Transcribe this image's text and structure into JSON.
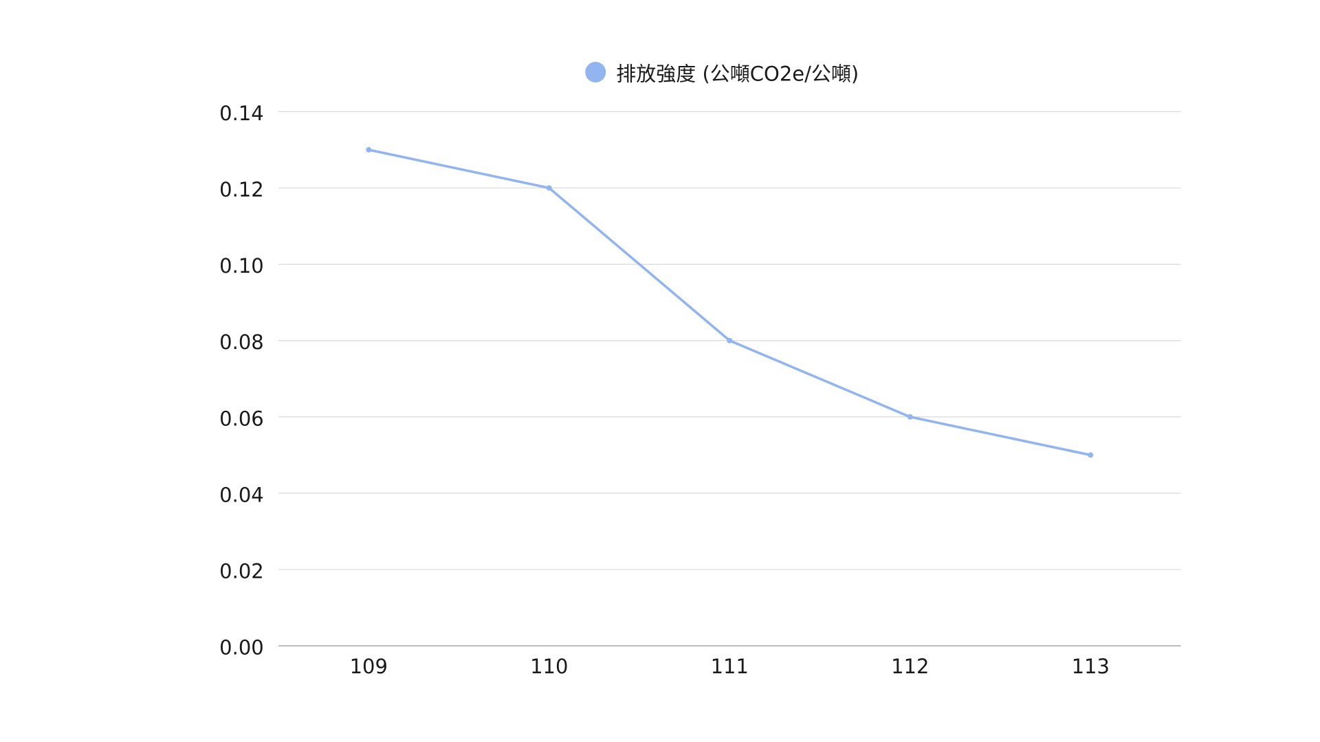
{
  "chart_data": {
    "type": "line",
    "categories": [
      "109",
      "110",
      "111",
      "112",
      "113"
    ],
    "series": [
      {
        "name": "排放強度 (公噸CO2e/公噸)",
        "values": [
          0.13,
          0.12,
          0.08,
          0.06,
          0.05
        ]
      }
    ],
    "ylim": [
      0,
      0.14
    ],
    "yticks": [
      "0.00",
      "0.02",
      "0.04",
      "0.06",
      "0.08",
      "0.10",
      "0.12",
      "0.14"
    ],
    "ytick_values": [
      0,
      0.02,
      0.04,
      0.06,
      0.08,
      0.1,
      0.12,
      0.14
    ],
    "grid": true,
    "legend_position": "top-center",
    "colors": {
      "series": "#93b5ef",
      "grid": "#d9d9d9",
      "axis": "#b3b3b3"
    }
  }
}
